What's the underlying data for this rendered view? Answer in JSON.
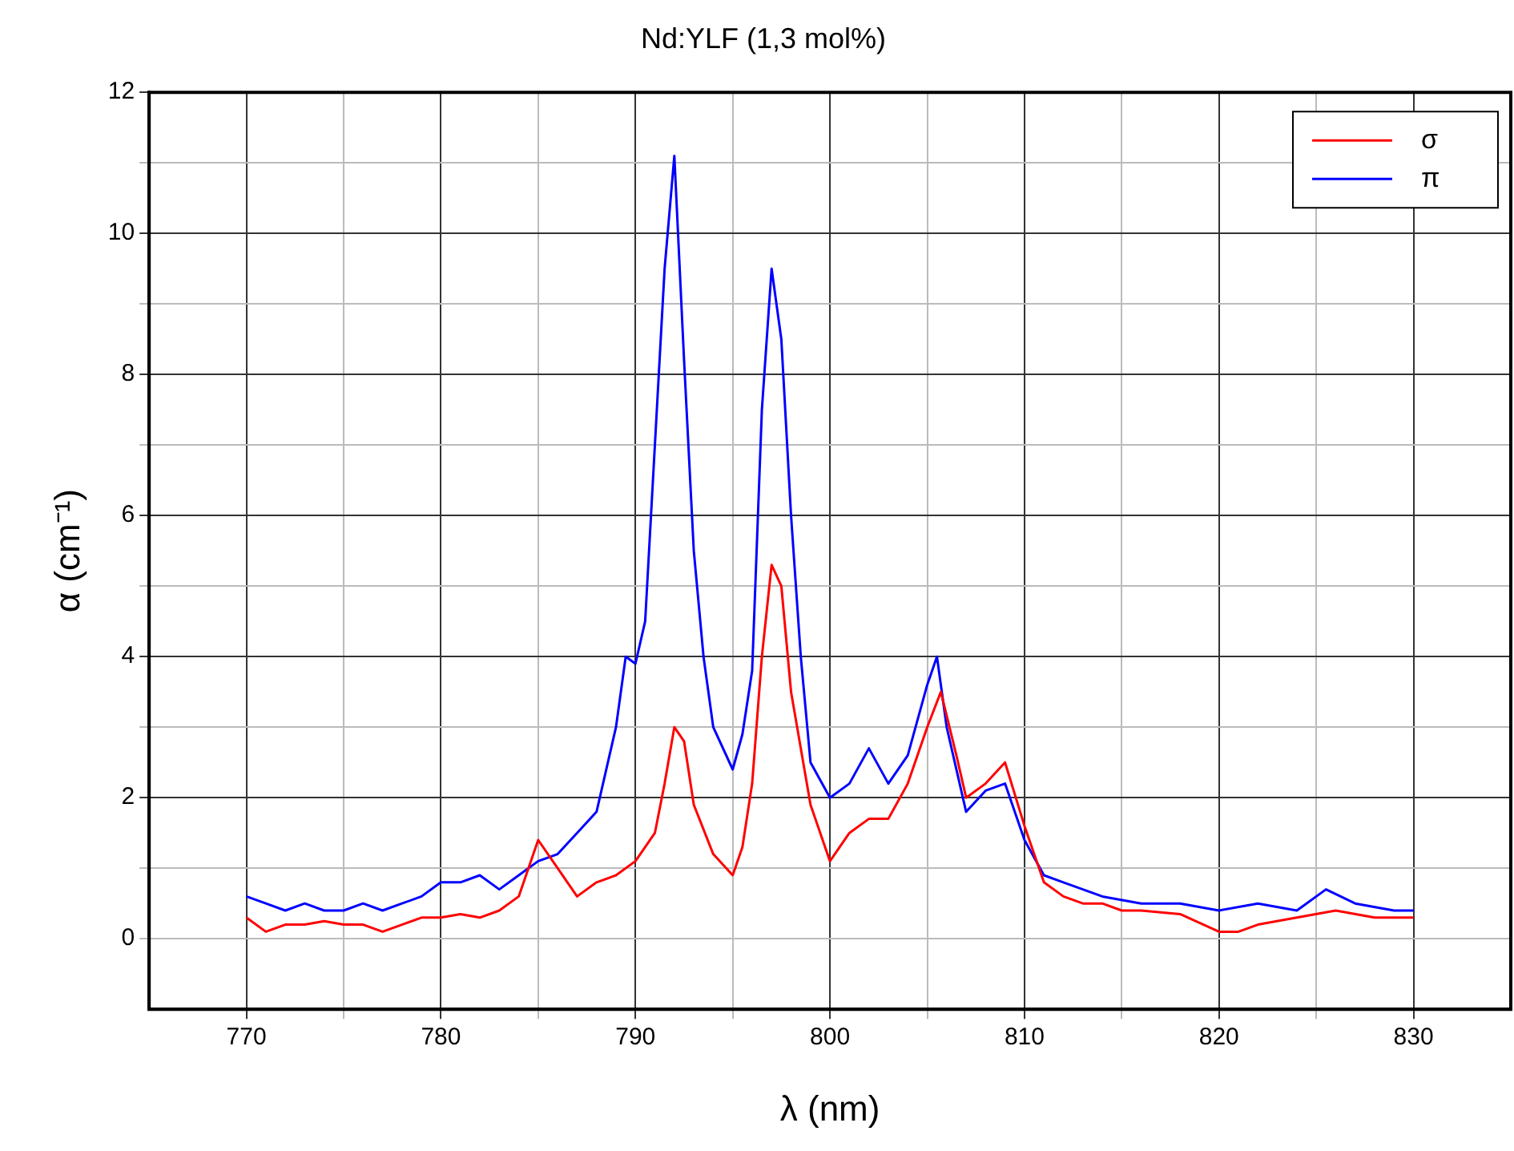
{
  "chart_data": {
    "type": "line",
    "title": "Nd:YLF (1,3 mol%)",
    "xlabel": "λ (nm)",
    "ylabel": "α (cm⁻¹)",
    "xlim": [
      765,
      835
    ],
    "xticks": [
      770,
      {
        "value": 775,
        "label": null
      },
      780,
      {
        "value": 785,
        "label": null
      },
      790,
      {
        "value": 795,
        "label": null
      },
      800,
      {
        "value": 805,
        "label": null
      },
      810,
      {
        "value": 815,
        "label": null
      },
      820,
      {
        "value": 825,
        "label": null
      },
      830
    ],
    "ylim": [
      -1,
      12
    ],
    "yticks": [
      0,
      {
        "value": 1,
        "label": null
      },
      2,
      {
        "value": 3,
        "label": null
      },
      4,
      {
        "value": 5,
        "label": null
      },
      6,
      {
        "value": 7,
        "label": null
      },
      8,
      {
        "value": 9,
        "label": null
      },
      10,
      {
        "value": 11,
        "label": null
      },
      12
    ],
    "grid": true,
    "legend": "top right",
    "marker": "none",
    "line_style": "solid",
    "series": [
      {
        "name": "σ",
        "color": "#ff0000",
        "x": [
          770,
          771,
          772,
          773,
          774,
          775,
          776,
          777,
          778,
          779,
          780,
          781,
          782,
          783,
          784,
          785,
          786,
          787,
          788,
          789,
          790,
          791,
          791.5,
          792,
          792.5,
          793,
          794,
          795,
          795.5,
          796,
          796.5,
          797,
          797.5,
          798,
          799,
          800,
          801,
          802,
          803,
          804,
          805,
          805.7,
          806.5,
          807,
          808,
          809,
          810,
          811,
          812,
          813,
          814,
          815,
          816,
          818,
          820,
          821,
          822,
          824,
          826,
          828,
          830
        ],
        "values": [
          0.3,
          0.1,
          0.2,
          0.2,
          0.25,
          0.2,
          0.2,
          0.1,
          0.2,
          0.3,
          0.3,
          0.35,
          0.3,
          0.4,
          0.6,
          1.4,
          1.0,
          0.6,
          0.8,
          0.9,
          1.1,
          1.5,
          2.2,
          3.0,
          2.8,
          1.9,
          1.2,
          0.9,
          1.3,
          2.2,
          4.0,
          5.3,
          5.0,
          3.5,
          1.9,
          1.1,
          1.5,
          1.7,
          1.7,
          2.2,
          3.0,
          3.5,
          2.6,
          2.0,
          2.2,
          2.5,
          1.6,
          0.8,
          0.6,
          0.5,
          0.5,
          0.4,
          0.4,
          0.35,
          0.1,
          0.1,
          0.2,
          0.3,
          0.4,
          0.3,
          0.3
        ]
      },
      {
        "name": "π",
        "color": "#0000ff",
        "x": [
          770,
          771,
          772,
          773,
          774,
          775,
          776,
          777,
          778,
          779,
          780,
          781,
          782,
          783,
          784,
          785,
          786,
          787,
          788,
          789,
          789.5,
          790,
          790.5,
          791,
          791.5,
          792,
          792.5,
          793,
          793.5,
          794,
          795,
          795.5,
          796,
          796.5,
          797,
          797.5,
          798,
          798.5,
          799,
          800,
          801,
          802,
          803,
          804,
          805,
          805.5,
          806,
          807,
          808,
          809,
          810,
          811,
          812,
          813,
          814,
          816,
          818,
          820,
          822,
          824,
          825.5,
          827,
          829,
          830
        ],
        "values": [
          0.6,
          0.5,
          0.4,
          0.5,
          0.4,
          0.4,
          0.5,
          0.4,
          0.5,
          0.6,
          0.8,
          0.8,
          0.9,
          0.7,
          0.9,
          1.1,
          1.2,
          1.5,
          1.8,
          3.0,
          4.0,
          3.9,
          4.5,
          7.0,
          9.5,
          11.1,
          8.2,
          5.5,
          4.0,
          3.0,
          2.4,
          2.9,
          3.8,
          7.5,
          9.5,
          8.5,
          6.0,
          4.0,
          2.5,
          2.0,
          2.2,
          2.7,
          2.2,
          2.6,
          3.6,
          4.0,
          3.0,
          1.8,
          2.1,
          2.2,
          1.4,
          0.9,
          0.8,
          0.7,
          0.6,
          0.5,
          0.5,
          0.4,
          0.5,
          0.4,
          0.7,
          0.5,
          0.4,
          0.4
        ]
      }
    ]
  }
}
